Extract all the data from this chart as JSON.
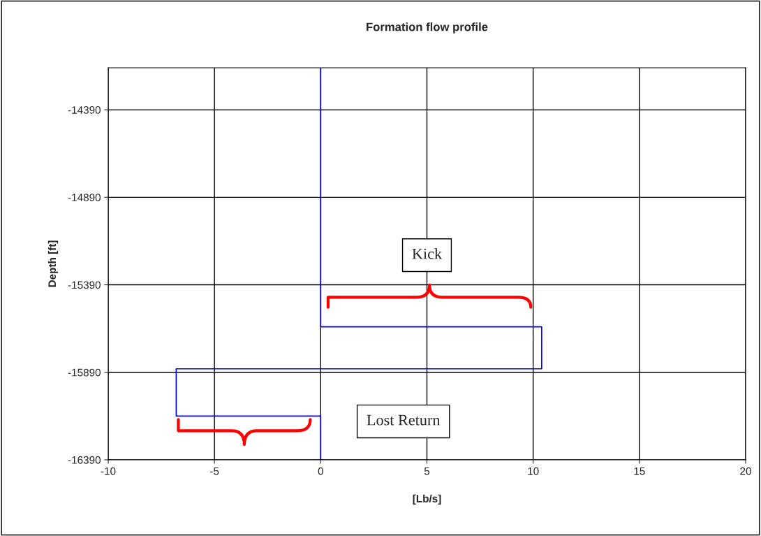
{
  "chart_data": {
    "type": "line",
    "title": "Formation flow profile",
    "xlabel": "[Lb/s]",
    "ylabel": "Depth [ft]",
    "series": [
      {
        "color": "#0000ff",
        "x": [
          0,
          0,
          10.4,
          10.4,
          -6.8,
          -6.8,
          0,
          0
        ],
        "values": [
          -14150,
          -15630,
          -15630,
          -15870,
          -15870,
          -16140,
          -16140,
          -16390
        ]
      }
    ],
    "xlim": [
      -10,
      20
    ],
    "xticks": [
      -10,
      -5,
      0,
      5,
      10,
      15,
      20
    ],
    "ylim": [
      -16390,
      -14150
    ],
    "yticks": [
      -16390,
      -15890,
      -15390,
      -14890,
      -14390
    ],
    "grid": true,
    "legend": false,
    "marker": "none",
    "line_style": "solid",
    "annotations": [
      "Kick",
      "Lost Return"
    ]
  }
}
